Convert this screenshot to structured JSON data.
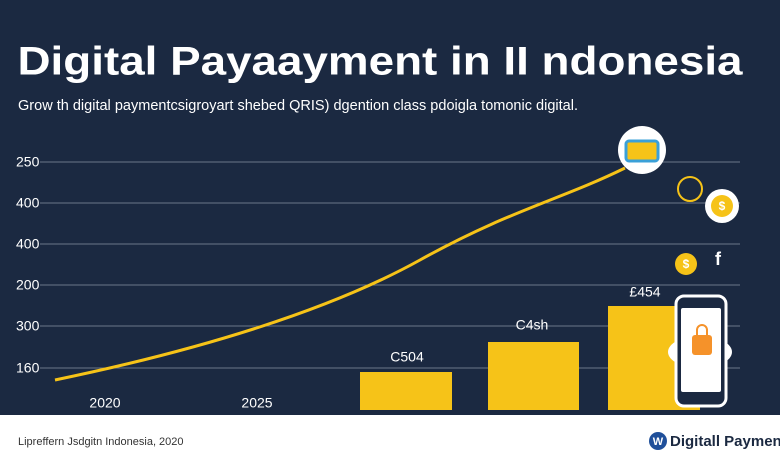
{
  "header": {
    "title": "Digital Payaayment in II ndonesia",
    "subtitle": "Grow th digital paymentcsigroyart shebed QRIS) dgention class pdoigla tomonic digital."
  },
  "axis": {
    "y_labels": [
      "250",
      "400",
      "400",
      "200",
      "300",
      "160"
    ],
    "x_labels": [
      "2020",
      "2025"
    ]
  },
  "bars": {
    "labels": [
      "C504",
      "C4sh",
      "£454"
    ]
  },
  "icons": {
    "labels": [
      "$",
      "$",
      "f"
    ]
  },
  "footer": {
    "source": "Lipreffern Jsdgitn Indonesia, 2020",
    "logo": "W",
    "brand": "Digitall Payments"
  }
}
